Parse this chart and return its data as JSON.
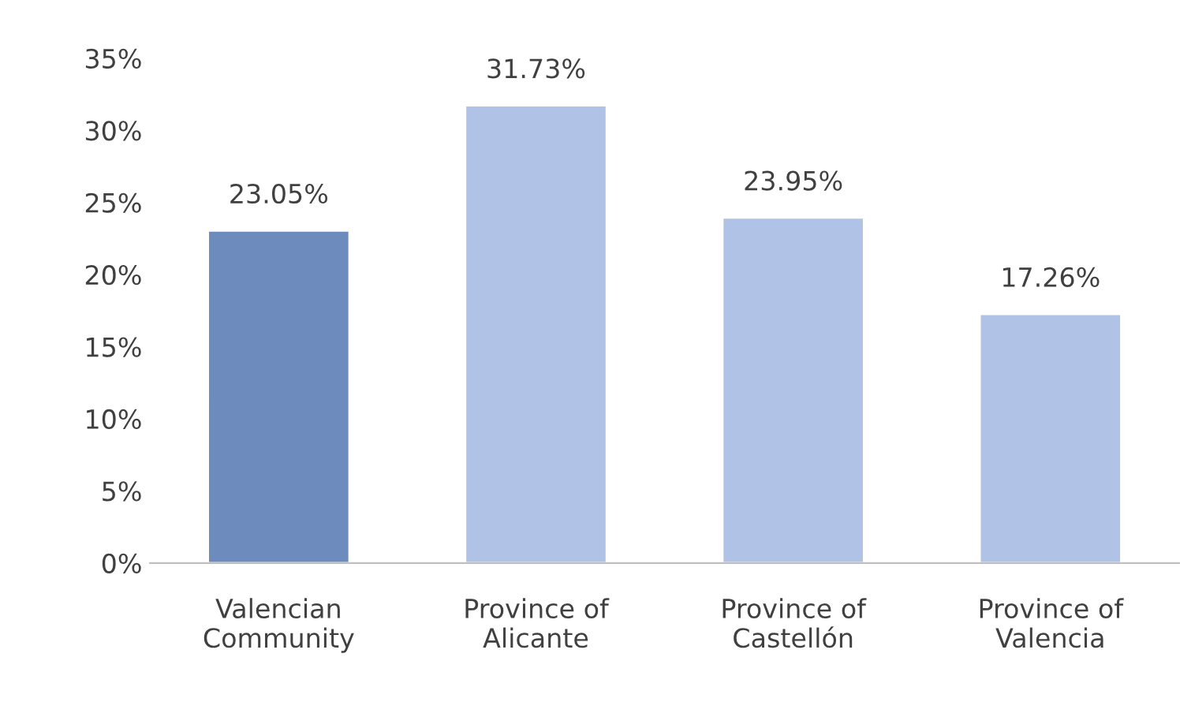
{
  "chart_data": {
    "type": "bar",
    "categories": [
      "Valencian\nCommunity",
      "Province of\nAlicante",
      "Province of\nCastellón",
      "Province of\nValencia"
    ],
    "values": [
      23.05,
      31.73,
      23.95,
      17.26
    ],
    "colors": [
      "#6e8bbd",
      "#b0c3e6",
      "#b0c3e6",
      "#b0c3e6"
    ],
    "value_labels": [
      "23.05%",
      "31.73%",
      "23.95%",
      "17.26%"
    ],
    "ylim": [
      0,
      35
    ],
    "yticks": [
      {
        "value": 0,
        "label": "0%"
      },
      {
        "value": 5,
        "label": "5%"
      },
      {
        "value": 10,
        "label": "10%"
      },
      {
        "value": 15,
        "label": "15%"
      },
      {
        "value": 20,
        "label": "20%"
      },
      {
        "value": 25,
        "label": "25%"
      },
      {
        "value": 30,
        "label": "30%"
      },
      {
        "value": 35,
        "label": "35%"
      }
    ],
    "grid": false,
    "legend": false
  }
}
